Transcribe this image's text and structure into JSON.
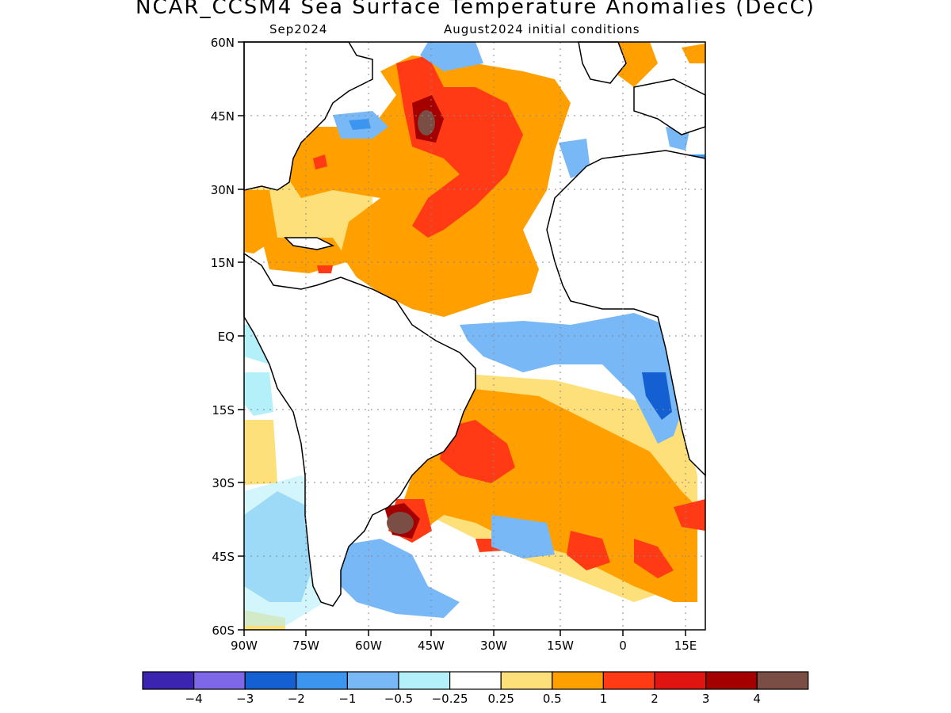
{
  "title": "NCAR_CCSM4 Sea Surface Temperature Anomalies (DecC)",
  "subtitle_left": "Sep2024",
  "subtitle_right": "August2024 initial conditions",
  "lat_labels": [
    "60N",
    "45N",
    "30N",
    "15N",
    "EQ",
    "15S",
    "30S",
    "45S",
    "60S"
  ],
  "lon_labels": [
    "90W",
    "75W",
    "60W",
    "45W",
    "30W",
    "15W",
    "0",
    "15E"
  ],
  "colorbar": {
    "colors": [
      "#3b24b0",
      "#7f68e8",
      "#1460d2",
      "#3c96f0",
      "#78b8f6",
      "#b4f0fa",
      "#ffffff",
      "#fee07a",
      "#ffa000",
      "#ff3a14",
      "#e01410",
      "#a50000",
      "#7a4e44"
    ],
    "labels": [
      "−4",
      "−3",
      "−2",
      "−1",
      "−0.5",
      "−0.25",
      "0.25",
      "0.5",
      "1",
      "2",
      "3",
      "4"
    ]
  }
}
